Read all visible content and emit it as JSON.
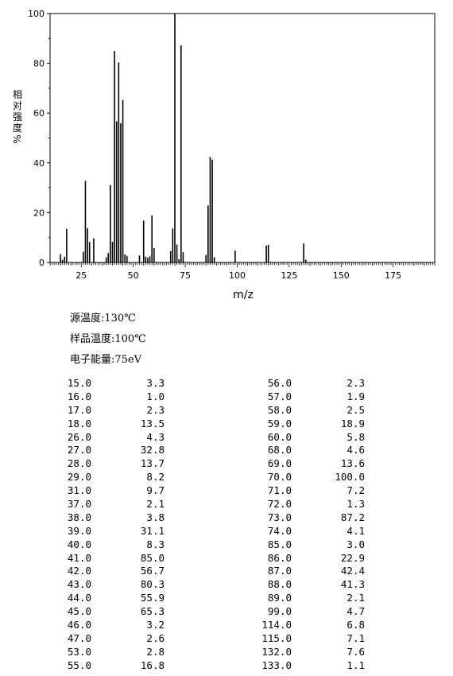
{
  "chart_data": {
    "type": "bar",
    "xlabel": "m/z",
    "ylabel": "相对强度 %",
    "xlim": [
      10,
      195
    ],
    "ylim": [
      0,
      100
    ],
    "x_ticks": [
      "25",
      "50",
      "75",
      "100",
      "125",
      "150",
      "175"
    ],
    "y_ticks": [
      "0",
      "20",
      "40",
      "60",
      "80",
      "100"
    ],
    "peaks": [
      {
        "mz": 15.0,
        "intensity": 3.3
      },
      {
        "mz": 16.0,
        "intensity": 1.0
      },
      {
        "mz": 17.0,
        "intensity": 2.3
      },
      {
        "mz": 18.0,
        "intensity": 13.5
      },
      {
        "mz": 26.0,
        "intensity": 4.3
      },
      {
        "mz": 27.0,
        "intensity": 32.8
      },
      {
        "mz": 28.0,
        "intensity": 13.7
      },
      {
        "mz": 29.0,
        "intensity": 8.2
      },
      {
        "mz": 31.0,
        "intensity": 9.7
      },
      {
        "mz": 37.0,
        "intensity": 2.1
      },
      {
        "mz": 38.0,
        "intensity": 3.8
      },
      {
        "mz": 39.0,
        "intensity": 31.1
      },
      {
        "mz": 40.0,
        "intensity": 8.3
      },
      {
        "mz": 41.0,
        "intensity": 85.0
      },
      {
        "mz": 42.0,
        "intensity": 56.7
      },
      {
        "mz": 43.0,
        "intensity": 80.3
      },
      {
        "mz": 44.0,
        "intensity": 55.9
      },
      {
        "mz": 45.0,
        "intensity": 65.3
      },
      {
        "mz": 46.0,
        "intensity": 3.2
      },
      {
        "mz": 47.0,
        "intensity": 2.6
      },
      {
        "mz": 53.0,
        "intensity": 2.8
      },
      {
        "mz": 55.0,
        "intensity": 16.8
      },
      {
        "mz": 56.0,
        "intensity": 2.3
      },
      {
        "mz": 57.0,
        "intensity": 1.9
      },
      {
        "mz": 58.0,
        "intensity": 2.5
      },
      {
        "mz": 59.0,
        "intensity": 18.9
      },
      {
        "mz": 60.0,
        "intensity": 5.8
      },
      {
        "mz": 68.0,
        "intensity": 4.6
      },
      {
        "mz": 69.0,
        "intensity": 13.6
      },
      {
        "mz": 70.0,
        "intensity": 100.0
      },
      {
        "mz": 71.0,
        "intensity": 7.2
      },
      {
        "mz": 72.0,
        "intensity": 1.3
      },
      {
        "mz": 73.0,
        "intensity": 87.2
      },
      {
        "mz": 74.0,
        "intensity": 4.1
      },
      {
        "mz": 85.0,
        "intensity": 3.0
      },
      {
        "mz": 86.0,
        "intensity": 22.9
      },
      {
        "mz": 87.0,
        "intensity": 42.4
      },
      {
        "mz": 88.0,
        "intensity": 41.3
      },
      {
        "mz": 89.0,
        "intensity": 2.1
      },
      {
        "mz": 99.0,
        "intensity": 4.7
      },
      {
        "mz": 114.0,
        "intensity": 6.8
      },
      {
        "mz": 115.0,
        "intensity": 7.1
      },
      {
        "mz": 132.0,
        "intensity": 7.6
      },
      {
        "mz": 133.0,
        "intensity": 1.1
      }
    ]
  },
  "parameters": {
    "source_temp": "源温度:130℃",
    "sample_temp": "样品温度:100℃",
    "electron_energy": "电子能量:75eV"
  },
  "peak_table": {
    "left": [
      [
        "15.0",
        "3.3"
      ],
      [
        "16.0",
        "1.0"
      ],
      [
        "17.0",
        "2.3"
      ],
      [
        "18.0",
        "13.5"
      ],
      [
        "26.0",
        "4.3"
      ],
      [
        "27.0",
        "32.8"
      ],
      [
        "28.0",
        "13.7"
      ],
      [
        "29.0",
        "8.2"
      ],
      [
        "31.0",
        "9.7"
      ],
      [
        "37.0",
        "2.1"
      ],
      [
        "38.0",
        "3.8"
      ],
      [
        "39.0",
        "31.1"
      ],
      [
        "40.0",
        "8.3"
      ],
      [
        "41.0",
        "85.0"
      ],
      [
        "42.0",
        "56.7"
      ],
      [
        "43.0",
        "80.3"
      ],
      [
        "44.0",
        "55.9"
      ],
      [
        "45.0",
        "65.3"
      ],
      [
        "46.0",
        "3.2"
      ],
      [
        "47.0",
        "2.6"
      ],
      [
        "53.0",
        "2.8"
      ],
      [
        "55.0",
        "16.8"
      ]
    ],
    "right": [
      [
        "56.0",
        "2.3"
      ],
      [
        "57.0",
        "1.9"
      ],
      [
        "58.0",
        "2.5"
      ],
      [
        "59.0",
        "18.9"
      ],
      [
        "60.0",
        "5.8"
      ],
      [
        "68.0",
        "4.6"
      ],
      [
        "69.0",
        "13.6"
      ],
      [
        "70.0",
        "100.0"
      ],
      [
        "71.0",
        "7.2"
      ],
      [
        "72.0",
        "1.3"
      ],
      [
        "73.0",
        "87.2"
      ],
      [
        "74.0",
        "4.1"
      ],
      [
        "85.0",
        "3.0"
      ],
      [
        "86.0",
        "22.9"
      ],
      [
        "87.0",
        "42.4"
      ],
      [
        "88.0",
        "41.3"
      ],
      [
        "89.0",
        "2.1"
      ],
      [
        "99.0",
        "4.7"
      ],
      [
        "114.0",
        "6.8"
      ],
      [
        "115.0",
        "7.1"
      ],
      [
        "132.0",
        "7.6"
      ],
      [
        "133.0",
        "1.1"
      ]
    ]
  }
}
